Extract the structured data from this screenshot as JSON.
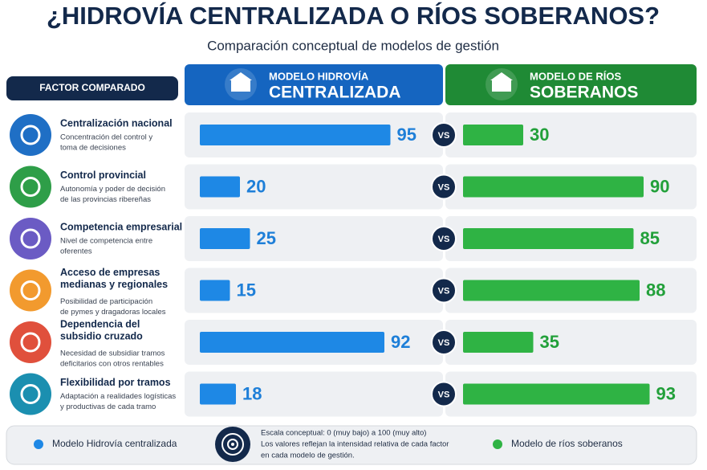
{
  "chart_data": {
    "type": "versus-bar",
    "title": "¿HIDROVÍA CENTRALIZADA O RÍOS SOBERANOS?",
    "subtitle": "Comparación conceptual de modelos de gestión",
    "factor_header": "FACTOR COMPARADO",
    "vs_label": "VS",
    "xlim": [
      0,
      100
    ],
    "categories": [
      {
        "title": [
          "Centralización nacional"
        ],
        "description": [
          "Concentración del control y",
          "toma de decisiones"
        ],
        "color": "#1f6fc5"
      },
      {
        "title": [
          "Control provincial"
        ],
        "description": [
          "Autonomía y poder de decisión",
          "de las provincias ribereñas"
        ],
        "color": "#2e9e48"
      },
      {
        "title": [
          "Competencia empresarial"
        ],
        "description": [
          "Nivel de competencia entre",
          "oferentes"
        ],
        "color": "#6b5bc4"
      },
      {
        "title": [
          "Acceso de empresas",
          "medianas y regionales"
        ],
        "description": [
          "Posibilidad de participación",
          "de pymes y dragadoras locales"
        ],
        "color": "#f29a2e"
      },
      {
        "title": [
          "Dependencia del",
          "subsidio cruzado"
        ],
        "description": [
          "Necesidad de subsidiar tramos",
          "deficitarios con otros rentables"
        ],
        "color": "#e0503c"
      },
      {
        "title": [
          "Flexibilidad por tramos"
        ],
        "description": [
          "Adaptación a realidades logísticas",
          "y productivas de cada tramo"
        ],
        "color": "#1b8fb0"
      }
    ],
    "series": [
      {
        "name": "Modelo Hidrovía centralizada",
        "header": [
          "MODELO HIDROVÍA",
          "CENTRALIZADA"
        ],
        "color": "#1e88e5",
        "values": [
          95,
          20,
          25,
          15,
          92,
          18
        ]
      },
      {
        "name": "Modelo de ríos soberanos",
        "header": [
          "MODELO DE RÍOS",
          "SOBERANOS"
        ],
        "color": "#2fb344",
        "values": [
          30,
          90,
          85,
          88,
          35,
          93
        ]
      }
    ],
    "note": [
      "Escala conceptual: 0 (muy bajo) a 100 (muy alto)",
      "Los valores reflejan la intensidad relativa de cada factor",
      "en cada modelo de gestión."
    ]
  }
}
